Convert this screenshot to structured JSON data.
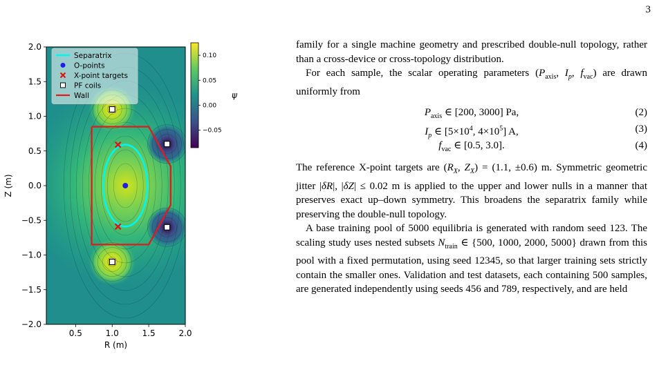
{
  "page_number": "3",
  "figure": {
    "colorbar": {
      "symbol": "ψ",
      "ticks": [
        "0.10",
        "0.05",
        "0.00",
        "−0.05"
      ]
    },
    "legend": [
      "Separatrix",
      "O-points",
      "X-point targets",
      "PF coils",
      "Wall"
    ],
    "x_axis": {
      "label": "R (m)",
      "ticks": [
        "0.5",
        "1.0",
        "1.5",
        "2.0"
      ]
    },
    "y_axis": {
      "label": "Z (m)",
      "ticks": [
        "2.0",
        "1.5",
        "1.0",
        "0.5",
        "0.0",
        "−0.5",
        "−1.0",
        "−1.5",
        "−2.0"
      ]
    },
    "colors": {
      "separatrix": "#00f5f5",
      "o_point": "#1f1fe6",
      "x_point": "#e01010",
      "wall": "#dd1c1c",
      "coil_fill": "#ffffff"
    }
  },
  "chart_data": {
    "type": "contour",
    "xlim": [
      0.1,
      2.0
    ],
    "ylim": [
      -2.0,
      2.0
    ],
    "xticks": [
      0.5,
      1.0,
      1.5,
      2.0
    ],
    "yticks": [
      2.0,
      1.5,
      1.0,
      0.5,
      0.0,
      -0.5,
      -1.0,
      -1.5,
      -2.0
    ],
    "colorbar_ticks": [
      0.1,
      0.05,
      0.0,
      -0.05
    ],
    "o_points": [
      [
        1.18,
        0.0
      ]
    ],
    "x_point_targets": [
      [
        1.08,
        0.59
      ],
      [
        1.08,
        -0.59
      ]
    ],
    "pf_coils": [
      [
        1.0,
        1.1
      ],
      [
        1.75,
        0.6
      ],
      [
        1.75,
        -0.6
      ],
      [
        1.0,
        -1.1
      ]
    ],
    "wall": [
      [
        0.72,
        0.85
      ],
      [
        1.5,
        0.85
      ],
      [
        1.8,
        0.28
      ],
      [
        1.8,
        -0.28
      ],
      [
        1.5,
        -0.85
      ],
      [
        0.72,
        -0.85
      ],
      [
        0.72,
        0.85
      ]
    ],
    "separatrix": {
      "center": [
        1.18,
        0.0
      ],
      "half_width": 0.3,
      "half_height": 0.59
    },
    "legend_position": "upper-left",
    "grid": false
  },
  "text": {
    "para1": "family for a single machine geometry and prescribed double-null topology, rather than a cross-device or cross-topology distribution.",
    "para2": "For each sample, the scalar operating parameters (P_axis, I_p, f_vac) are drawn uniformly from",
    "equations": [
      {
        "lhs": "P_axis",
        "rhs": "∈ [200, 3000] Pa,",
        "num": "(2)"
      },
      {
        "lhs": "I_p",
        "rhs": "∈ [5×10^4, 4×10^5] A,",
        "num": "(3)"
      },
      {
        "lhs": "f_vac",
        "rhs": "∈ [0.5, 3.0].",
        "num": "(4)"
      }
    ],
    "para3": "The reference X-point targets are (R_X, Z_X) = (1.1, ±0.6) m. Symmetric geometric jitter |δR|, |δZ| ≤ 0.02 m is applied to the upper and lower nulls in a manner that preserves exact up–down symmetry. This broadens the separatrix family while preserving the double-null topology.",
    "para4": "A base training pool of 5000 equilibria is generated with random seed 123. The scaling study uses nested subsets N_train ∈ {500, 1000, 2000, 5000} drawn from this pool with a fixed permutation, using seed 12345, so that larger training sets strictly contain the smaller ones. Validation and test datasets, each containing 500 samples, are generated independently using seeds 456 and 789, respectively, and are held"
  }
}
